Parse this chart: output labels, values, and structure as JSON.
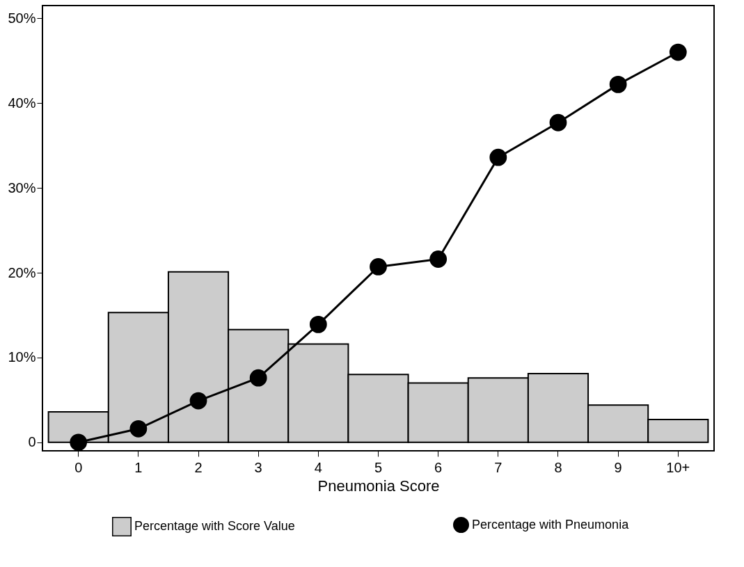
{
  "chart_data": {
    "type": "bar",
    "xlabel": "Pneumonia Score",
    "categories": [
      "0",
      "1",
      "2",
      "3",
      "4",
      "5",
      "6",
      "7",
      "8",
      "9",
      "10+"
    ],
    "series": [
      {
        "name": "Percentage with Score Value",
        "color": "#cccccc",
        "values": [
          3.6,
          15.3,
          20.1,
          13.3,
          11.6,
          8.0,
          7.0,
          7.6,
          8.1,
          4.4,
          2.7
        ]
      },
      {
        "name": "Percentage with Pneumonia",
        "type": "line",
        "color": "#000000",
        "values": [
          0,
          1.6,
          4.9,
          7.6,
          13.9,
          20.7,
          21.6,
          33.6,
          37.7,
          42.2,
          46.0
        ]
      }
    ],
    "ylim": [
      -1,
      51.5
    ],
    "yticks": [
      0,
      {
        "value": 10,
        "label": "10%"
      },
      {
        "value": 20,
        "label": "20%"
      },
      {
        "value": 30,
        "label": "30%"
      },
      {
        "value": 40,
        "label": "40%"
      },
      {
        "value": 50,
        "label": "50%"
      }
    ],
    "grid": false,
    "legend": "bottom",
    "marker": "circle",
    "line_style": "solid"
  }
}
